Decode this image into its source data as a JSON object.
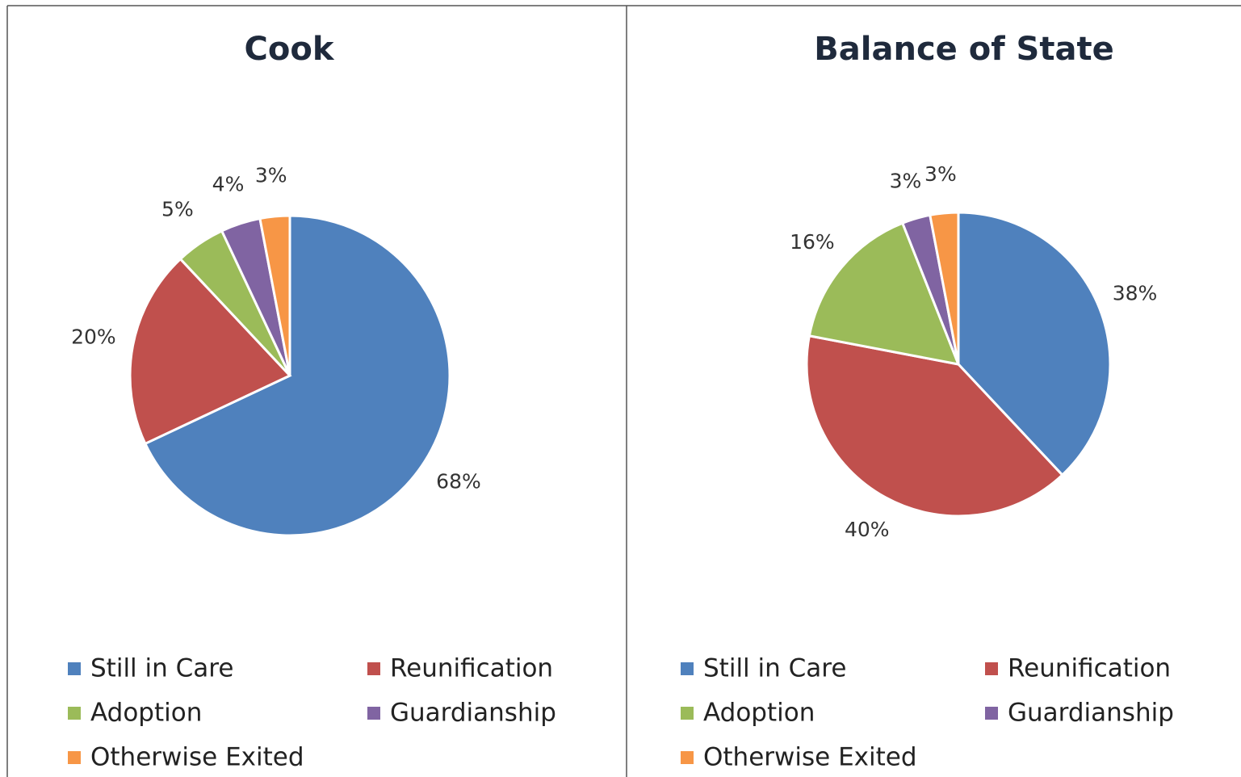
{
  "chart_data": [
    {
      "type": "pie",
      "title": "Cook",
      "categories": [
        "Still in Care",
        "Reunification",
        "Adoption",
        "Guardianship",
        "Otherwise Exited"
      ],
      "values": [
        68,
        20,
        5,
        4,
        3
      ],
      "value_labels": [
        "68%",
        "20%",
        "5%",
        "4%",
        "3%"
      ],
      "colors": [
        "#4f81bd",
        "#c0504d",
        "#9bbb59",
        "#8064a2",
        "#f79646"
      ]
    },
    {
      "type": "pie",
      "title": "Balance of State",
      "categories": [
        "Still in Care",
        "Reunification",
        "Adoption",
        "Guardianship",
        "Otherwise Exited"
      ],
      "values": [
        38,
        40,
        16,
        3,
        3
      ],
      "value_labels": [
        "38%",
        "40%",
        "16%",
        "3%",
        "3%"
      ],
      "colors": [
        "#4f81bd",
        "#c0504d",
        "#9bbb59",
        "#8064a2",
        "#f79646"
      ]
    }
  ]
}
